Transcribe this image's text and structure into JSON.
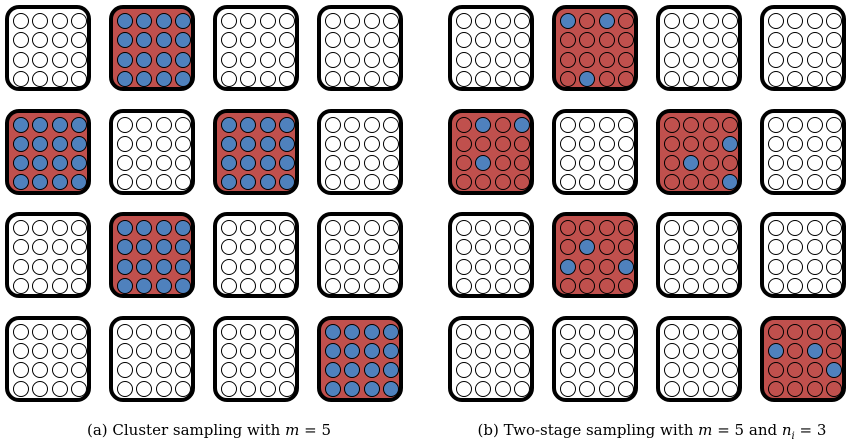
{
  "colors": {
    "selected_cluster": "#c0504d",
    "sampled_unit": "#4f81bd",
    "unselected": "#ffffff",
    "outline": "#000000"
  },
  "grid": {
    "rows": 4,
    "cols": 4,
    "units_per_side": 4
  },
  "panels": [
    {
      "id": "a",
      "caption": {
        "label": "(a)",
        "text": "Cluster sampling with",
        "m_symbol": "m",
        "equals": "=",
        "m_value": "5",
        "and_text": "",
        "n_symbol": "",
        "n_sub": "",
        "n_value": ""
      },
      "selected_clusters": [
        {
          "row": 0,
          "col": 1,
          "units": "all"
        },
        {
          "row": 1,
          "col": 0,
          "units": "all"
        },
        {
          "row": 1,
          "col": 2,
          "units": "all"
        },
        {
          "row": 2,
          "col": 1,
          "units": "all"
        },
        {
          "row": 3,
          "col": 3,
          "units": "all"
        }
      ]
    },
    {
      "id": "b",
      "caption": {
        "label": "(b)",
        "text": "Two-stage sampling with",
        "m_symbol": "m",
        "equals": "=",
        "m_value": "5",
        "and_text": "and",
        "n_symbol": "n",
        "n_sub": "i",
        "n_value": "3"
      },
      "selected_clusters": [
        {
          "row": 0,
          "col": 1,
          "units": [
            [
              0,
              0
            ],
            [
              0,
              2
            ],
            [
              3,
              1
            ]
          ]
        },
        {
          "row": 1,
          "col": 0,
          "units": [
            [
              0,
              1
            ],
            [
              0,
              3
            ],
            [
              2,
              1
            ]
          ]
        },
        {
          "row": 1,
          "col": 2,
          "units": [
            [
              1,
              3
            ],
            [
              2,
              1
            ],
            [
              3,
              3
            ]
          ]
        },
        {
          "row": 2,
          "col": 1,
          "units": [
            [
              1,
              1
            ],
            [
              2,
              0
            ],
            [
              2,
              3
            ]
          ]
        },
        {
          "row": 3,
          "col": 3,
          "units": [
            [
              1,
              0
            ],
            [
              1,
              2
            ],
            [
              2,
              3
            ]
          ]
        }
      ]
    }
  ]
}
